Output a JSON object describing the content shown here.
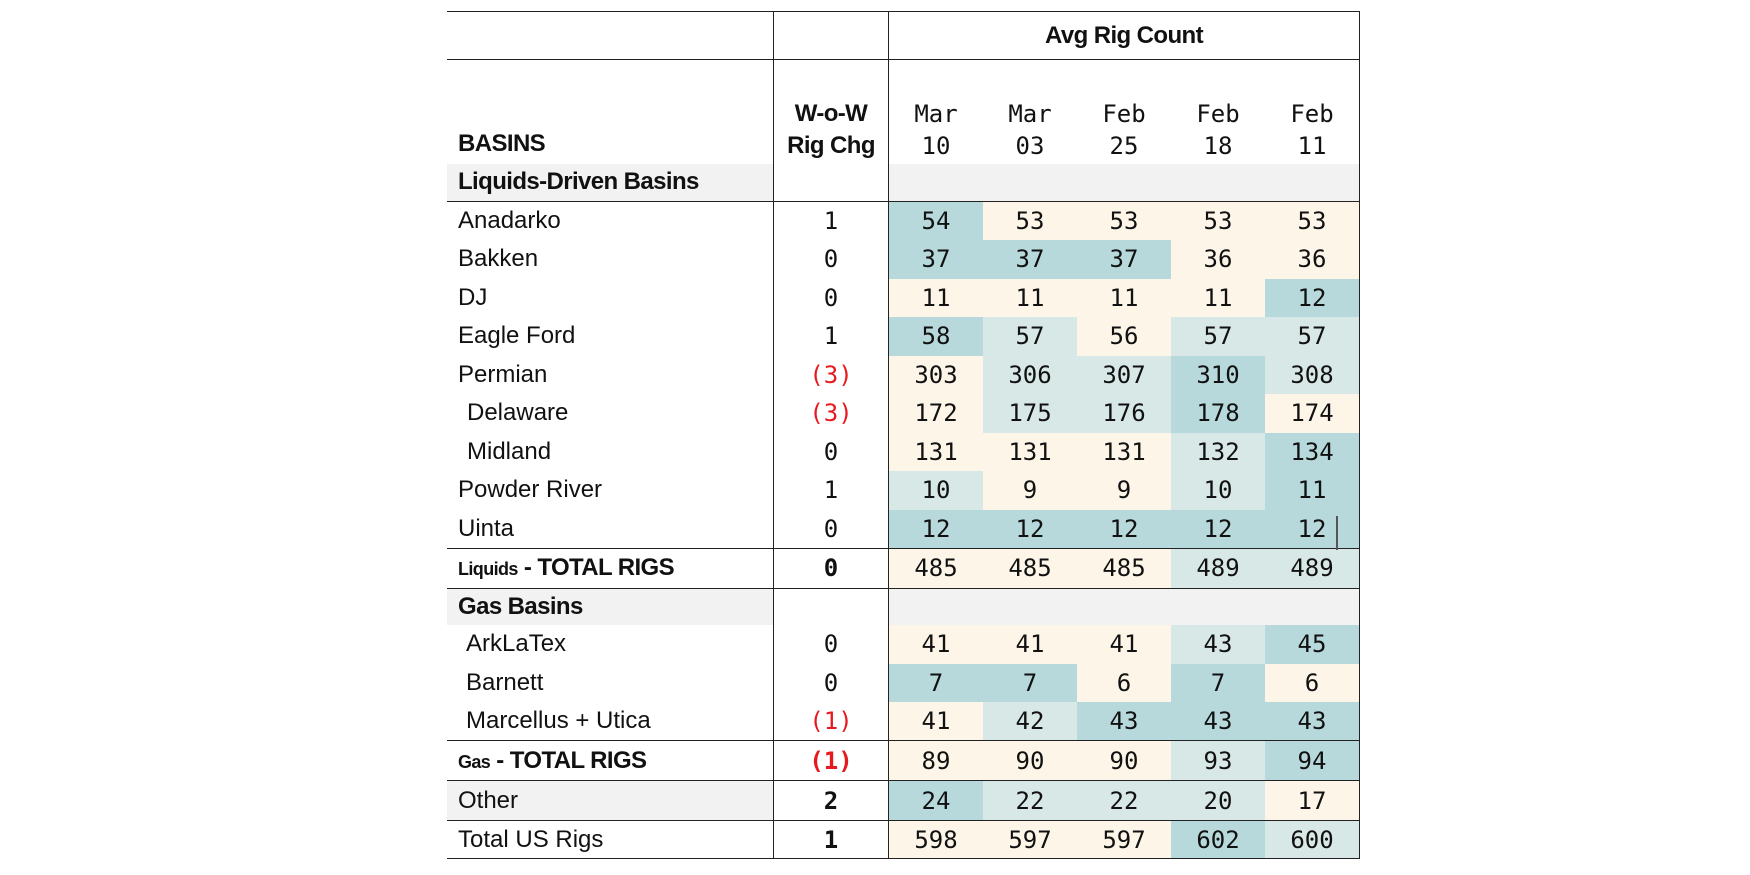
{
  "header": {
    "group_label": "Avg Rig Count",
    "basins_label": "BASINS",
    "change_label_line1": "W-o-W",
    "change_label_line2": "Rig Chg",
    "dates": [
      {
        "month": "Mar",
        "day": "10"
      },
      {
        "month": "Mar",
        "day": "03"
      },
      {
        "month": "Feb",
        "day": "25"
      },
      {
        "month": "Feb",
        "day": "18"
      },
      {
        "month": "Feb",
        "day": "11"
      }
    ]
  },
  "liquids": {
    "section_label": "Liquids-Driven Basins",
    "rows": [
      {
        "name": "Anadarko",
        "chg": "1",
        "values": [
          "54",
          "53",
          "53",
          "53",
          "53"
        ]
      },
      {
        "name": "Bakken",
        "chg": "0",
        "values": [
          "37",
          "37",
          "37",
          "36",
          "36"
        ]
      },
      {
        "name": "DJ",
        "chg": "0",
        "values": [
          "11",
          "11",
          "11",
          "11",
          "12"
        ]
      },
      {
        "name": "Eagle Ford",
        "chg": "1",
        "values": [
          "58",
          "57",
          "56",
          "57",
          "57"
        ]
      },
      {
        "name": "Permian",
        "chg": "(3)",
        "values": [
          "303",
          "306",
          "307",
          "310",
          "308"
        ]
      },
      {
        "name": "Delaware",
        "chg": "(3)",
        "values": [
          "172",
          "175",
          "176",
          "178",
          "174"
        ]
      },
      {
        "name": "Midland",
        "chg": "0",
        "values": [
          "131",
          "131",
          "131",
          "132",
          "134"
        ]
      },
      {
        "name": "Powder River",
        "chg": "1",
        "values": [
          "10",
          "9",
          "9",
          "10",
          "11"
        ]
      },
      {
        "name": "Uinta",
        "chg": "0",
        "values": [
          "12",
          "12",
          "12",
          "12",
          "12"
        ]
      }
    ],
    "total": {
      "label_prefix": "Liquids",
      "label_suffix": " - TOTAL RIGS",
      "chg": "0",
      "values": [
        "485",
        "485",
        "485",
        "489",
        "489"
      ]
    }
  },
  "gas": {
    "section_label": "Gas Basins",
    "rows": [
      {
        "name": "ArkLaTex",
        "chg": "0",
        "values": [
          "41",
          "41",
          "41",
          "43",
          "45"
        ]
      },
      {
        "name": "Barnett",
        "chg": "0",
        "values": [
          "7",
          "7",
          "6",
          "7",
          "6"
        ]
      },
      {
        "name": "Marcellus + Utica",
        "chg": "(1)",
        "values": [
          "41",
          "42",
          "43",
          "43",
          "43"
        ]
      }
    ],
    "total": {
      "label_prefix": "Gas",
      "label_suffix": " - TOTAL RIGS",
      "chg": "(1)",
      "values": [
        "89",
        "90",
        "90",
        "93",
        "94"
      ]
    }
  },
  "other": {
    "name": "Other",
    "chg": "2",
    "values": [
      "24",
      "22",
      "22",
      "20",
      "17"
    ]
  },
  "us_total": {
    "name": "Total US Rigs",
    "chg": "1",
    "values": [
      "598",
      "597",
      "597",
      "602",
      "600"
    ]
  },
  "colors": {
    "teal": "#b7d9dc",
    "light_teal": "#d7e8e6",
    "cream": "#fdf6e8",
    "section_grey": "#f2f2f2",
    "negative_red": "#e8191e"
  }
}
